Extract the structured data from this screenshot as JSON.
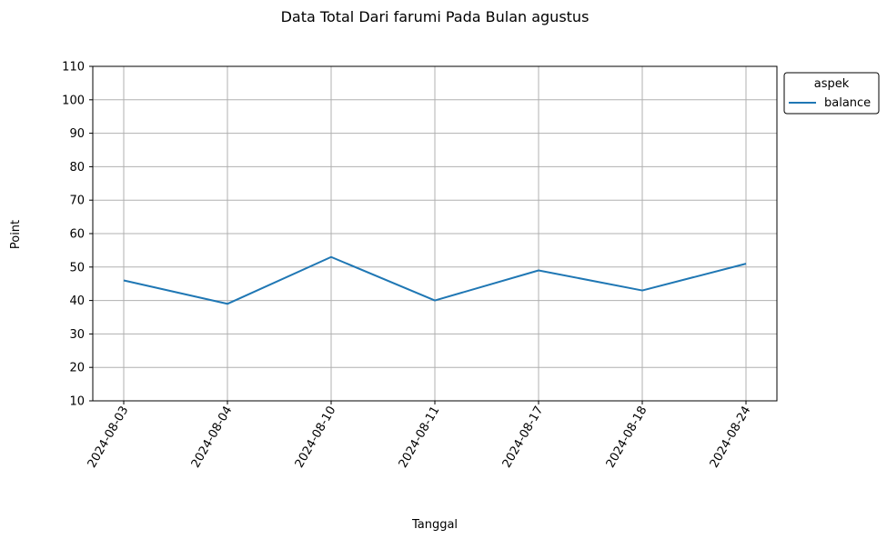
{
  "chart_data": {
    "type": "line",
    "title": "Data Total Dari farumi Pada Bulan agustus",
    "xlabel": "Tanggal",
    "ylabel": "Point",
    "categories": [
      "2024-08-03",
      "2024-08-04",
      "2024-08-10",
      "2024-08-11",
      "2024-08-17",
      "2024-08-18",
      "2024-08-24"
    ],
    "series": [
      {
        "name": "balance",
        "values": [
          46,
          39,
          53,
          40,
          49,
          43,
          51
        ],
        "color": "#1f77b4"
      }
    ],
    "ylim": [
      10,
      110
    ],
    "yticks": [
      10,
      20,
      30,
      40,
      50,
      60,
      70,
      80,
      90,
      100,
      110
    ],
    "grid": true,
    "legend": {
      "title": "aspek",
      "placement": "outside-top-right"
    }
  }
}
